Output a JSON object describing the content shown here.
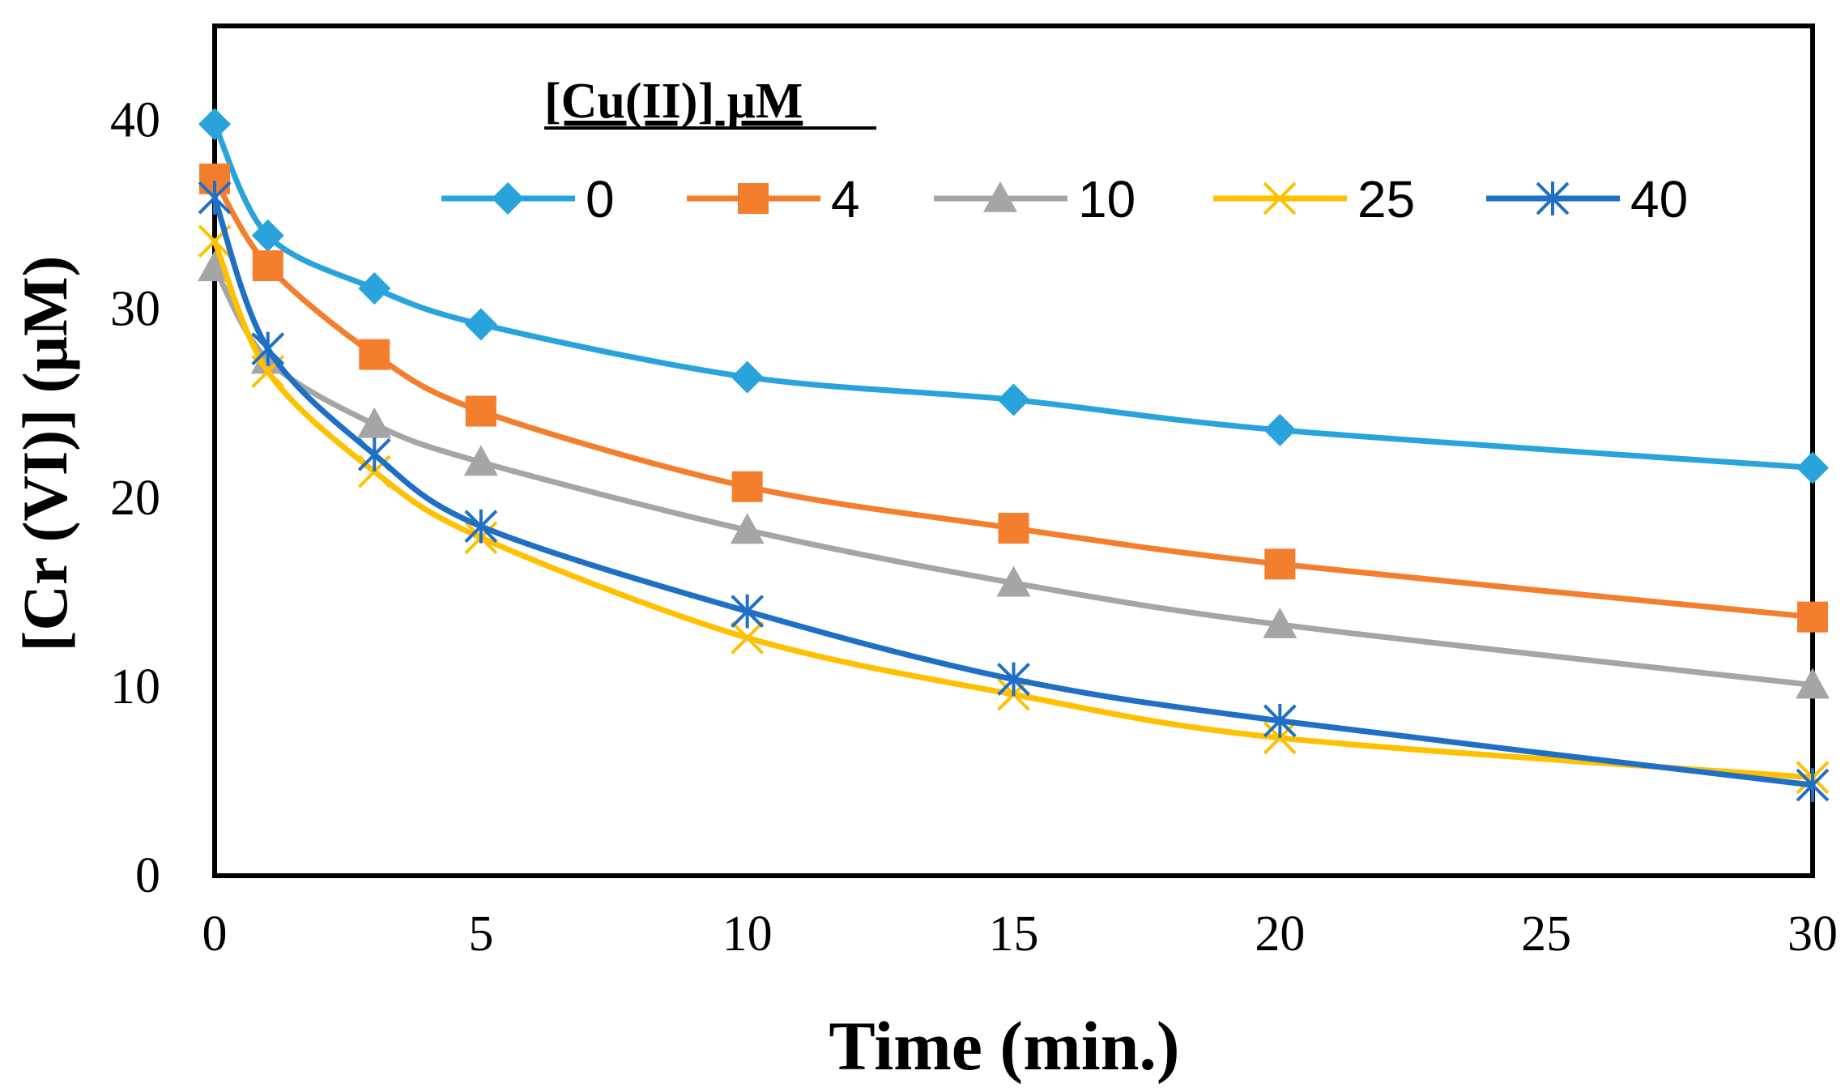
{
  "chart_data": {
    "type": "line",
    "title": "",
    "xlabel": "Time (min.)",
    "ylabel": "[Cr (VI)] (μM)",
    "xlim": [
      0,
      30
    ],
    "ylim": [
      0,
      45
    ],
    "xticks": [
      0,
      5,
      10,
      15,
      20,
      25,
      30
    ],
    "yticks": [
      0,
      10,
      20,
      30,
      40
    ],
    "grid": false,
    "legend": {
      "title": "[Cu(II)] μM",
      "placement": "top",
      "entries": [
        "0",
        "4",
        "10",
        "25",
        "40"
      ]
    },
    "x": [
      0,
      1,
      3,
      5,
      10,
      15,
      20,
      30
    ],
    "series": [
      {
        "name": "0",
        "color": "#29A3DB",
        "marker": "diamond",
        "values": [
          39.8,
          33.9,
          31.1,
          29.2,
          26.4,
          25.2,
          23.6,
          21.6
        ]
      },
      {
        "name": "4",
        "color": "#F37E2E",
        "marker": "square",
        "values": [
          36.9,
          32.3,
          27.6,
          24.6,
          20.6,
          18.4,
          16.5,
          13.7
        ]
      },
      {
        "name": "10",
        "color": "#A5A5A5",
        "marker": "triangle",
        "values": [
          32.2,
          27.3,
          23.9,
          21.9,
          18.3,
          15.5,
          13.3,
          10.1
        ]
      },
      {
        "name": "25",
        "color": "#FFC000",
        "marker": "x",
        "values": [
          33.6,
          26.7,
          21.4,
          17.9,
          12.6,
          9.6,
          7.3,
          5.2
        ]
      },
      {
        "name": "40",
        "color": "#1F6FC5",
        "marker": "asterisk",
        "values": [
          35.9,
          27.9,
          22.3,
          18.5,
          14.0,
          10.4,
          8.2,
          4.8
        ]
      }
    ]
  }
}
